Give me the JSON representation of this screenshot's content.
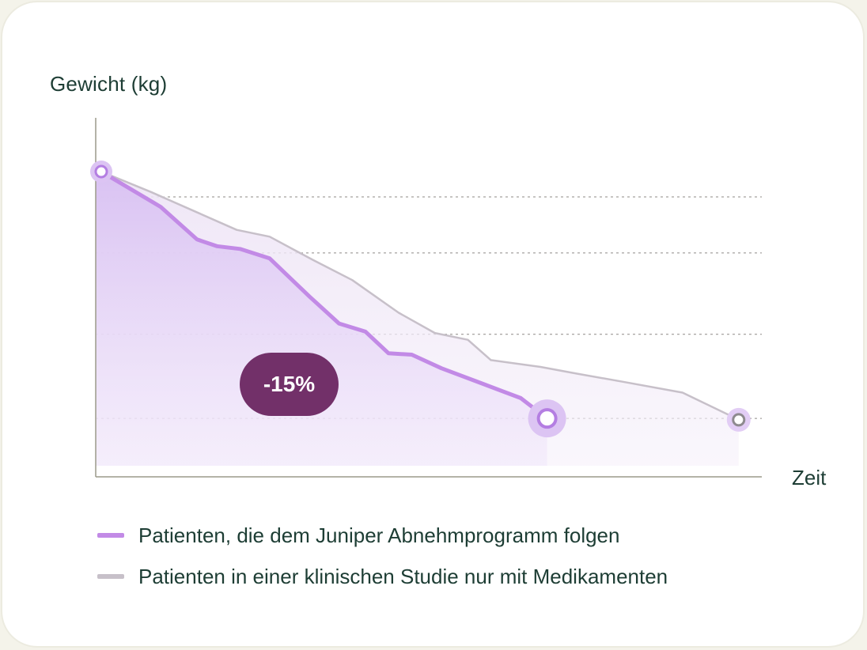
{
  "chart_data": {
    "type": "area",
    "title": "",
    "ylabel": "Gewicht (kg)",
    "xlabel": "Zeit",
    "x_range": [
      0,
      100
    ],
    "y_range": [
      0,
      100
    ],
    "grid": "horizontal dashed",
    "annotation": {
      "text": "-15%",
      "x": 28,
      "y": 30
    },
    "series": [
      {
        "name": "Patienten, die dem Juniper Abnehmprogramm folgen",
        "color": "#c28ae6",
        "x": [
          0,
          9,
          14.5,
          17.5,
          21,
          25.5,
          31.5,
          36,
          40,
          43.5,
          47,
          51.5,
          57.5,
          63.5,
          67.5
        ],
        "y": [
          100,
          87,
          75,
          72.5,
          71.5,
          68,
          54,
          44,
          41,
          33,
          32.5,
          27.5,
          22,
          16.5,
          9
        ]
      },
      {
        "name": "Patienten in einer klinischen Studie nur mit Medikamenten",
        "color": "#c7c0c9",
        "x": [
          0,
          7.5,
          14,
          20.5,
          25.5,
          32,
          38,
          45,
          50.5,
          55.5,
          59,
          66.5,
          72,
          79,
          88,
          96.5
        ],
        "y": [
          100,
          92.5,
          85.5,
          78.5,
          76,
          67.5,
          60,
          48,
          40.5,
          38,
          30.5,
          28,
          25.5,
          22.5,
          18.5,
          8.5
        ]
      }
    ],
    "legend": [
      {
        "label": "Patienten, die dem Juniper Abnehmprogramm folgen",
        "color": "#c28ae6"
      },
      {
        "label": "Patienten in einer klinischen Studie nur mit Medikamenten",
        "color": "#c7c0c9"
      }
    ]
  }
}
